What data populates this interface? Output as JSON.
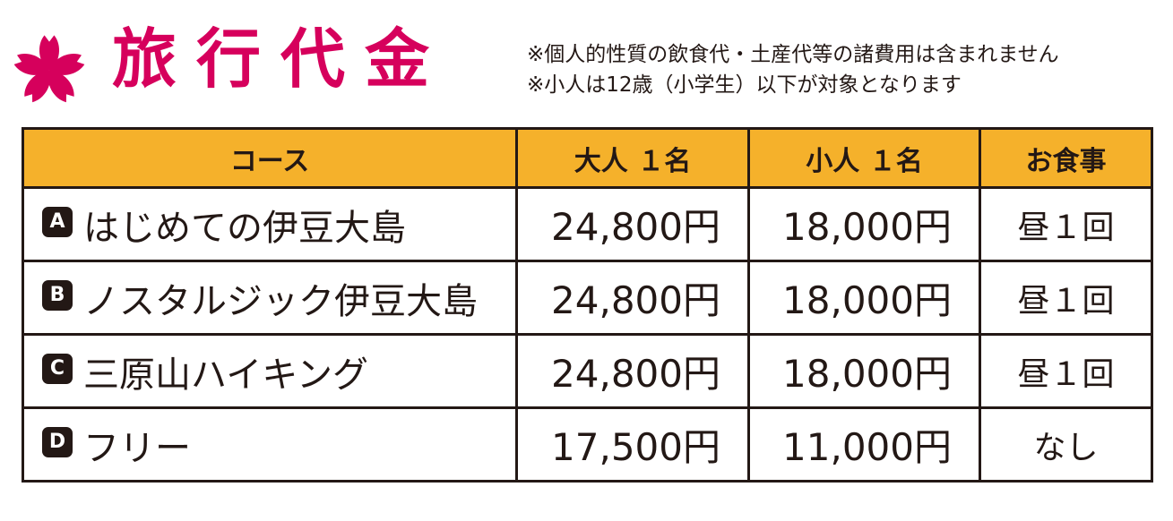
{
  "header": {
    "title": "旅行代金",
    "notes": [
      "※個人的性質の飲食代・土産代等の諸費用は含まれません",
      "※小人は12歳（小学生）以下が対象となります"
    ]
  },
  "colors": {
    "accent": "#d6005c",
    "header_fill": "#f5b12b",
    "text": "#231815"
  },
  "table": {
    "headers": [
      "コース",
      "大人 １名",
      "小人 １名",
      "お食事"
    ],
    "rows": [
      {
        "badge": "A",
        "course": "はじめての伊豆大島",
        "adult": "24,800円",
        "child": "18,000円",
        "meal": "昼１回"
      },
      {
        "badge": "B",
        "course": "ノスタルジック伊豆大島",
        "adult": "24,800円",
        "child": "18,000円",
        "meal": "昼１回"
      },
      {
        "badge": "C",
        "course": "三原山ハイキング",
        "adult": "24,800円",
        "child": "18,000円",
        "meal": "昼１回"
      },
      {
        "badge": "D",
        "course": "フリー",
        "adult": "17,500円",
        "child": "11,000円",
        "meal": "なし"
      }
    ]
  }
}
